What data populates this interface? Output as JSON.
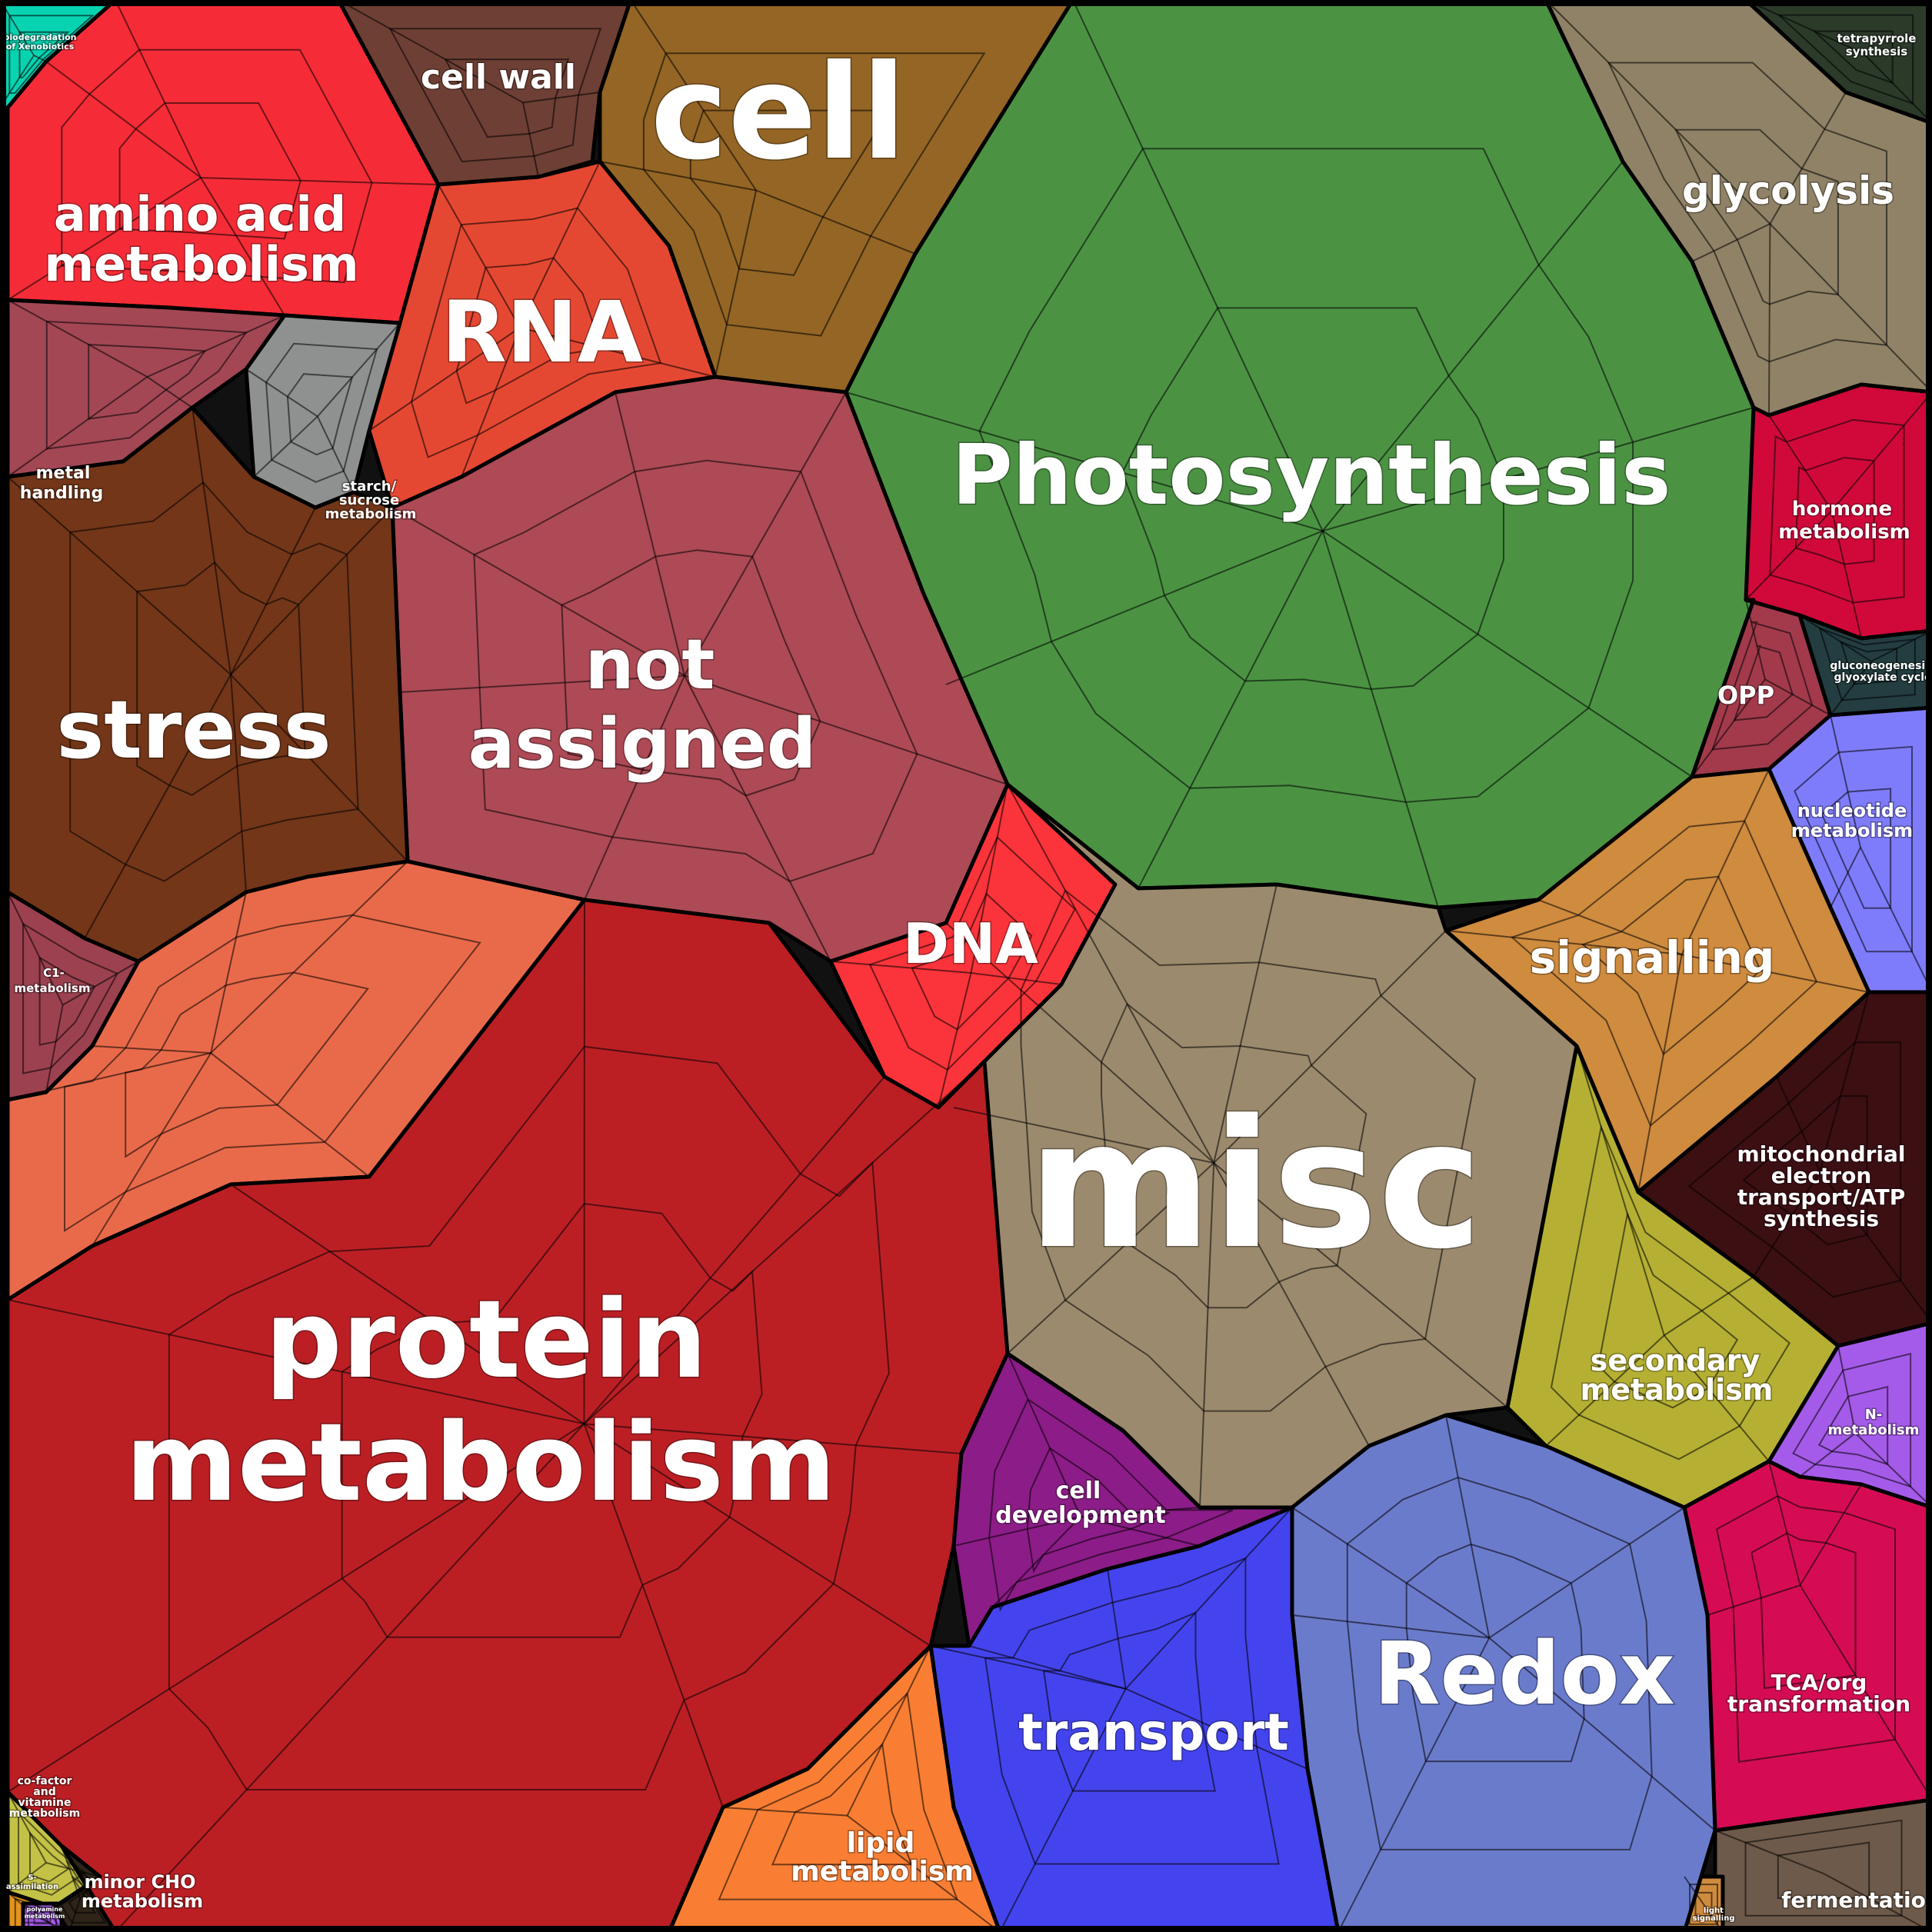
{
  "chart_data": {
    "type": "voronoi-treemap",
    "categories": [
      {
        "name": "Photosynthesis",
        "color": "#4b9343"
      },
      {
        "name": "misc",
        "color": "#9c8a6e"
      },
      {
        "name": "protein metabolism",
        "color": "#bb1f24"
      },
      {
        "name": "not assigned",
        "color": "#ad4a55"
      },
      {
        "name": "cell",
        "color": "#946524"
      },
      {
        "name": "stress",
        "color": "#733618"
      },
      {
        "name": "RNA",
        "color": "#e54832"
      },
      {
        "name": "amino acid metabolism",
        "color": "#f52c37"
      },
      {
        "name": "DNA",
        "color": "#fa343a"
      },
      {
        "name": "Redox",
        "color": "#6b7bcc"
      },
      {
        "name": "transport",
        "color": "#4444ee"
      },
      {
        "name": "signalling",
        "color": "#cf8b3e"
      },
      {
        "name": "glycolysis",
        "color": "#8f8266"
      },
      {
        "name": "cell wall",
        "color": "#6e3f34"
      },
      {
        "name": "lipid metabolism",
        "color": "#f97e33"
      },
      {
        "name": "secondary metabolism",
        "color": "#b5b033"
      },
      {
        "name": "cell development",
        "color": "#8c1c87"
      },
      {
        "name": "mitochondrial electron transport/ATP synthesis",
        "color": "#3c0f13"
      },
      {
        "name": "TCA/org transformation",
        "color": "#d50c53"
      },
      {
        "name": "nucleotide metabolism",
        "color": "#7f7cfb"
      },
      {
        "name": "hormone metabolism",
        "color": "#d0093a"
      },
      {
        "name": "metal handling",
        "color": "#a34755"
      },
      {
        "name": "starch/ sucrose metabolism",
        "color": "#8f9090"
      },
      {
        "name": "C1-metabolism",
        "color": "#9c4150"
      },
      {
        "name": "OPP",
        "color": "#a23a4c"
      },
      {
        "name": "gluconeogenesis/ glyoxylate cycle",
        "color": "#233d40"
      },
      {
        "name": "N-metabolism",
        "color": "#a55be9"
      },
      {
        "name": "tetrapyrrole synthesis",
        "color": "#2c3a2a"
      },
      {
        "name": "minor CHO metabolism",
        "color": "#2e2419"
      },
      {
        "name": "fermentation",
        "color": "#6e5a4a"
      },
      {
        "name": "co-factor and vitamine metabolism",
        "color": "#c3c246"
      },
      {
        "name": "S-assimilation",
        "color": "#e3941e"
      },
      {
        "name": "biodegradation of Xenobiotics",
        "color": "#07d3b1"
      },
      {
        "name": "light signalling",
        "color": "#cf8b3e"
      },
      {
        "name": "polyamine metabolism",
        "color": "#a55be9"
      }
    ]
  }
}
